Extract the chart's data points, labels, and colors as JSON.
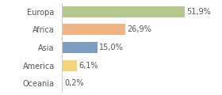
{
  "categories": [
    "Europa",
    "Africa",
    "Asia",
    "America",
    "Oceania"
  ],
  "values": [
    51.9,
    26.9,
    15.0,
    6.1,
    0.2
  ],
  "labels": [
    "51,9%",
    "26,9%",
    "15,0%",
    "6,1%",
    "0,2%"
  ],
  "colors": [
    "#b5c98e",
    "#f0b482",
    "#7b9ec0",
    "#f5d47a",
    "#e8e8e8"
  ],
  "background_color": "#ffffff",
  "xlim": [
    0,
    65
  ],
  "label_fontsize": 7,
  "bar_height": 0.62,
  "ytick_fontsize": 7,
  "spine_color": "#cccccc"
}
